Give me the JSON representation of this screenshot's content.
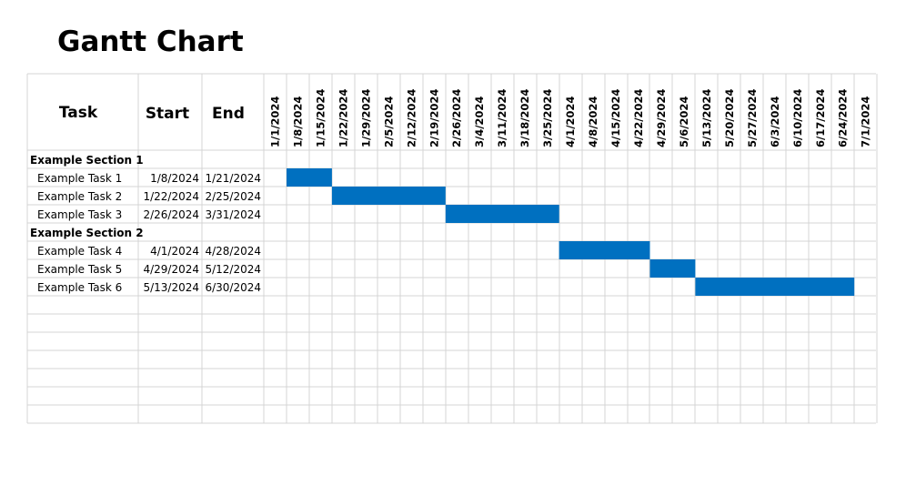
{
  "title": "Gantt Chart",
  "chart_data": {
    "type": "gantt",
    "title": "Gantt Chart",
    "bar_color": "#0070C0",
    "grid_color": "#d4d4d4",
    "columns": {
      "task": "Task",
      "start": "Start",
      "end": "End"
    },
    "timeline": [
      "1/1/2024",
      "1/8/2024",
      "1/15/2024",
      "1/22/2024",
      "1/29/2024",
      "2/5/2024",
      "2/12/2024",
      "2/19/2024",
      "2/26/2024",
      "3/4/2024",
      "3/11/2024",
      "3/18/2024",
      "3/25/2024",
      "4/1/2024",
      "4/8/2024",
      "4/15/2024",
      "4/22/2024",
      "4/29/2024",
      "5/6/2024",
      "5/13/2024",
      "5/20/2024",
      "5/27/2024",
      "6/3/2024",
      "6/10/2024",
      "6/17/2024",
      "6/24/2024",
      "7/1/2024"
    ],
    "rows": [
      {
        "kind": "section",
        "label": "Example Section 1"
      },
      {
        "kind": "task",
        "label": "Example Task 1",
        "start": "1/8/2024",
        "end": "1/21/2024"
      },
      {
        "kind": "task",
        "label": "Example Task 2",
        "start": "1/22/2024",
        "end": "2/25/2024"
      },
      {
        "kind": "task",
        "label": "Example Task 3",
        "start": "2/26/2024",
        "end": "3/31/2024"
      },
      {
        "kind": "section",
        "label": "Example Section 2"
      },
      {
        "kind": "task",
        "label": "Example Task 4",
        "start": "4/1/2024",
        "end": "4/28/2024"
      },
      {
        "kind": "task",
        "label": "Example Task 5",
        "start": "4/29/2024",
        "end": "5/12/2024"
      },
      {
        "kind": "task",
        "label": "Example Task 6",
        "start": "5/13/2024",
        "end": "6/30/2024"
      }
    ]
  }
}
